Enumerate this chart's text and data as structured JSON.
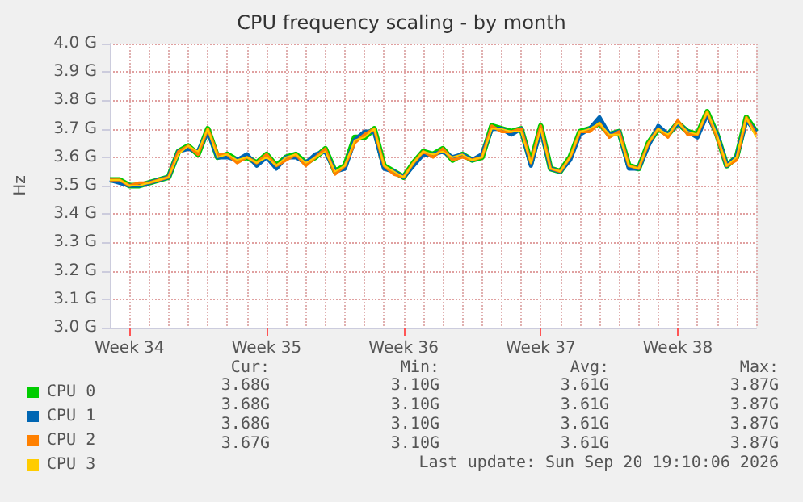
{
  "chart_data": {
    "type": "line",
    "title": "CPU frequency scaling - by month",
    "ylabel": "Hz",
    "categories": [
      null,
      null,
      "Week 34",
      null,
      null,
      null,
      null,
      null,
      null,
      null,
      null,
      null,
      null,
      null,
      null,
      null,
      "Week 35",
      null,
      null,
      null,
      null,
      null,
      null,
      null,
      null,
      null,
      null,
      null,
      null,
      null,
      "Week 36",
      null,
      null,
      null,
      null,
      null,
      null,
      null,
      null,
      null,
      null,
      null,
      null,
      null,
      "Week 37",
      null,
      null,
      null,
      null,
      null,
      null,
      null,
      null,
      null,
      null,
      null,
      null,
      null,
      "Week 38",
      null,
      null,
      null,
      null,
      null,
      null,
      null,
      null
    ],
    "series": [
      {
        "name": "CPU 0",
        "color": "#00cc00",
        "values": [
          3.52,
          3.52,
          3.5,
          3.5,
          3.51,
          3.52,
          3.53,
          3.62,
          3.64,
          3.61,
          3.7,
          3.6,
          3.61,
          3.59,
          3.6,
          3.58,
          3.61,
          3.57,
          3.6,
          3.61,
          3.58,
          3.6,
          3.63,
          3.55,
          3.57,
          3.67,
          3.67,
          3.7,
          3.57,
          3.55,
          3.53,
          3.58,
          3.62,
          3.61,
          3.63,
          3.59,
          3.61,
          3.59,
          3.6,
          3.71,
          3.7,
          3.69,
          3.7,
          3.58,
          3.71,
          3.56,
          3.55,
          3.6,
          3.69,
          3.7,
          3.72,
          3.68,
          3.69,
          3.57,
          3.56,
          3.65,
          3.7,
          3.68,
          3.72,
          3.69,
          3.68,
          3.76,
          3.68,
          3.57,
          3.6,
          3.74,
          3.69
        ]
      },
      {
        "name": "CPU 1",
        "color": "#0066b3",
        "values": [
          3.52,
          3.51,
          3.5,
          3.5,
          3.51,
          3.52,
          3.53,
          3.62,
          3.63,
          3.62,
          3.69,
          3.6,
          3.6,
          3.59,
          3.61,
          3.57,
          3.6,
          3.56,
          3.6,
          3.6,
          3.58,
          3.61,
          3.62,
          3.55,
          3.56,
          3.66,
          3.69,
          3.69,
          3.56,
          3.55,
          3.53,
          3.57,
          3.61,
          3.61,
          3.62,
          3.6,
          3.61,
          3.59,
          3.61,
          3.7,
          3.7,
          3.68,
          3.7,
          3.57,
          3.7,
          3.56,
          3.55,
          3.59,
          3.68,
          3.7,
          3.74,
          3.68,
          3.69,
          3.56,
          3.56,
          3.64,
          3.71,
          3.68,
          3.72,
          3.69,
          3.67,
          3.75,
          3.68,
          3.57,
          3.6,
          3.73,
          3.69
        ]
      },
      {
        "name": "CPU 2",
        "color": "#ff8000",
        "values": [
          3.52,
          3.52,
          3.5,
          3.51,
          3.51,
          3.52,
          3.53,
          3.62,
          3.64,
          3.61,
          3.7,
          3.61,
          3.61,
          3.58,
          3.6,
          3.58,
          3.61,
          3.57,
          3.59,
          3.61,
          3.57,
          3.6,
          3.63,
          3.54,
          3.57,
          3.65,
          3.68,
          3.7,
          3.57,
          3.54,
          3.53,
          3.58,
          3.62,
          3.6,
          3.63,
          3.59,
          3.6,
          3.59,
          3.6,
          3.71,
          3.69,
          3.69,
          3.7,
          3.58,
          3.71,
          3.56,
          3.55,
          3.6,
          3.69,
          3.69,
          3.72,
          3.67,
          3.69,
          3.57,
          3.56,
          3.65,
          3.7,
          3.67,
          3.73,
          3.68,
          3.68,
          3.76,
          3.67,
          3.57,
          3.59,
          3.74,
          3.68
        ]
      },
      {
        "name": "CPU 3",
        "color": "#ffcc00",
        "values": [
          3.52,
          3.52,
          3.5,
          3.5,
          3.51,
          3.52,
          3.53,
          3.61,
          3.64,
          3.62,
          3.7,
          3.6,
          3.61,
          3.59,
          3.6,
          3.58,
          3.6,
          3.57,
          3.6,
          3.61,
          3.58,
          3.6,
          3.62,
          3.55,
          3.57,
          3.66,
          3.67,
          3.7,
          3.57,
          3.55,
          3.53,
          3.58,
          3.62,
          3.61,
          3.62,
          3.6,
          3.61,
          3.59,
          3.6,
          3.7,
          3.7,
          3.69,
          3.69,
          3.58,
          3.7,
          3.56,
          3.55,
          3.6,
          3.69,
          3.7,
          3.72,
          3.68,
          3.68,
          3.57,
          3.56,
          3.65,
          3.7,
          3.68,
          3.72,
          3.69,
          3.68,
          3.76,
          3.68,
          3.57,
          3.6,
          3.74,
          3.67
        ]
      }
    ],
    "ylim": [
      3.0,
      4.0
    ],
    "yticks": [
      {
        "value": 3.0,
        "label": "3.0 G"
      },
      {
        "value": 3.1,
        "label": "3.1 G"
      },
      {
        "value": 3.2,
        "label": "3.2 G"
      },
      {
        "value": 3.3,
        "label": "3.3 G"
      },
      {
        "value": 3.4,
        "label": "3.4 G"
      },
      {
        "value": 3.5,
        "label": "3.5 G"
      },
      {
        "value": 3.6,
        "label": "3.6 G"
      },
      {
        "value": 3.7,
        "label": "3.7 G"
      },
      {
        "value": 3.8,
        "label": "3.8 G"
      },
      {
        "value": 3.9,
        "label": "3.9 G"
      },
      {
        "value": 4.0,
        "label": "4.0 G"
      }
    ],
    "grid": true,
    "legend": "bottom left",
    "marker": "none",
    "line_style": "solid",
    "annotations": [
      "Cur:",
      "Min:",
      "Avg:",
      "Max:",
      "3.68G",
      "3.10G",
      "3.61G",
      "3.87G",
      "3.68G",
      "3.10G",
      "3.61G",
      "3.87G",
      "3.68G",
      "3.10G",
      "3.61G",
      "3.87G",
      "3.67G",
      "3.10G",
      "3.61G",
      "3.87G",
      "Last update: Sun Sep 20 19:10:06 2026"
    ]
  }
}
